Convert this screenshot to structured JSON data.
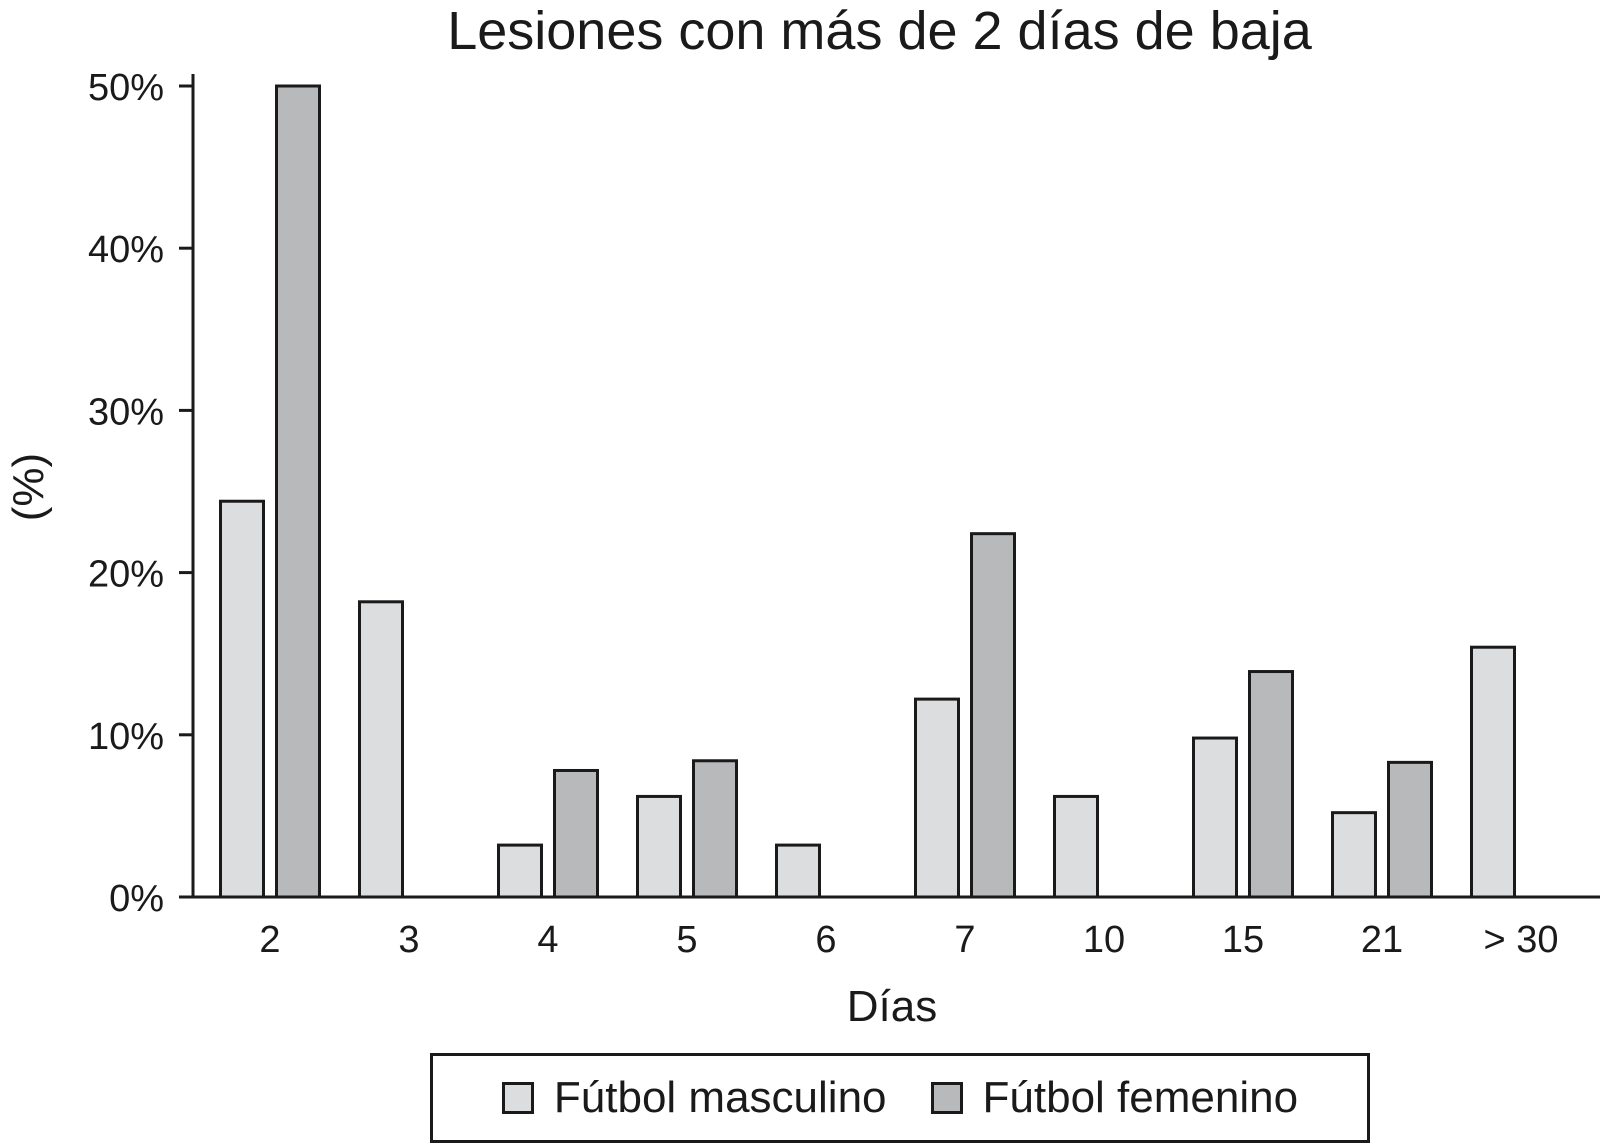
{
  "chart_data": {
    "type": "bar",
    "title": "Lesiones con más de 2 días de baja",
    "xlabel": "Días",
    "ylabel": "(%)",
    "categories": [
      "2",
      "3",
      "4",
      "5",
      "6",
      "7",
      "10",
      "15",
      "21",
      "> 30"
    ],
    "yticks": [
      "0%",
      "10%",
      "20%",
      "30%",
      "40%",
      "50%"
    ],
    "ylim": [
      0,
      50
    ],
    "grid": false,
    "legend_position": "bottom",
    "series": [
      {
        "name": "Fútbol masculino",
        "color": "#dcdddf",
        "values": [
          24.4,
          18.2,
          3.2,
          6.2,
          3.2,
          12.2,
          6.2,
          9.8,
          5.2,
          15.4
        ]
      },
      {
        "name": "Fútbol femenino",
        "color": "#b8b9bb",
        "values": [
          50.0,
          0,
          7.8,
          8.4,
          0,
          22.4,
          0,
          13.9,
          8.3,
          0
        ]
      }
    ]
  }
}
